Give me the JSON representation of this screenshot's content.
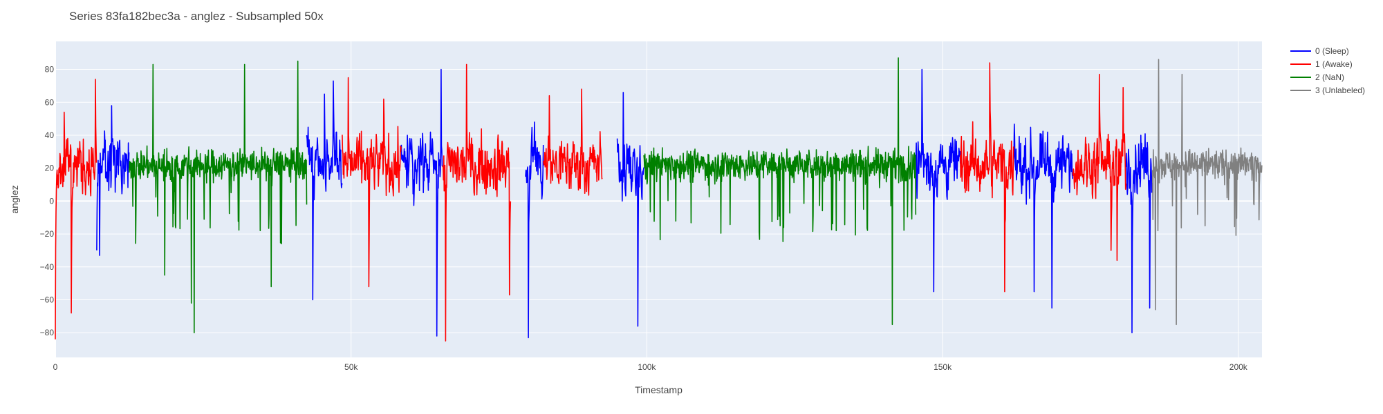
{
  "chart_data": {
    "type": "line",
    "title": "Series 83fa182bec3a - anglez - Subsampled 50x",
    "xlabel": "Timestamp",
    "ylabel": "anglez",
    "xlim": [
      0,
      204000
    ],
    "ylim": [
      -95,
      97
    ],
    "x_ticks": [
      0,
      50000,
      100000,
      150000,
      200000
    ],
    "x_tick_labels": [
      "0",
      "50k",
      "100k",
      "150k",
      "200k"
    ],
    "y_ticks": [
      -80,
      -60,
      -40,
      -20,
      0,
      20,
      40,
      60,
      80
    ],
    "y_tick_labels": [
      "−80",
      "−60",
      "−40",
      "−20",
      "0",
      "20",
      "40",
      "60",
      "80"
    ],
    "grid": true,
    "legend_position": "top-right",
    "plot_background": "#e5ecf6",
    "series": [
      {
        "name": "0 (Sleep)",
        "color": "#0000ff",
        "style": "dense",
        "ranges": [
          [
            7000,
            12500
          ],
          [
            42500,
            48500
          ],
          [
            58500,
            65500
          ],
          [
            79500,
            82500
          ],
          [
            95000,
            99500
          ],
          [
            145500,
            153000
          ],
          [
            162000,
            172000
          ],
          [
            181000,
            185500
          ]
        ],
        "keypoints": [
          [
            7000,
            -30
          ],
          [
            7500,
            -33
          ],
          [
            9500,
            58
          ],
          [
            11500,
            20
          ],
          [
            12500,
            73
          ],
          [
            42500,
            40
          ],
          [
            43500,
            -60
          ],
          [
            45500,
            65
          ],
          [
            47000,
            73
          ],
          [
            48500,
            10
          ],
          [
            59500,
            40
          ],
          [
            64500,
            -82
          ],
          [
            65200,
            80
          ],
          [
            80000,
            -83
          ],
          [
            81000,
            48
          ],
          [
            95000,
            38
          ],
          [
            96000,
            66
          ],
          [
            98500,
            -76
          ],
          [
            146500,
            80
          ],
          [
            148500,
            -55
          ],
          [
            154000,
            77
          ],
          [
            165500,
            -55
          ],
          [
            168500,
            -65
          ],
          [
            182000,
            -80
          ],
          [
            183500,
            40
          ],
          [
            185000,
            -65
          ]
        ]
      },
      {
        "name": "1 (Awake)",
        "color": "#ff0000",
        "style": "dense",
        "ranges": [
          [
            0,
            7000
          ],
          [
            48500,
            58500
          ],
          [
            65500,
            77000
          ],
          [
            82500,
            92500
          ],
          [
            153000,
            162000
          ],
          [
            172000,
            181000
          ]
        ],
        "keypoints": [
          [
            0,
            -84
          ],
          [
            500,
            8
          ],
          [
            1500,
            54
          ],
          [
            2700,
            -68
          ],
          [
            6800,
            74
          ],
          [
            49500,
            75
          ],
          [
            53000,
            -52
          ],
          [
            55500,
            62
          ],
          [
            66000,
            -85
          ],
          [
            69500,
            83
          ],
          [
            76800,
            -57
          ],
          [
            83500,
            64
          ],
          [
            89000,
            68
          ],
          [
            92500,
            -84
          ],
          [
            158000,
            84
          ],
          [
            160500,
            -55
          ],
          [
            176500,
            77
          ],
          [
            178500,
            -30
          ],
          [
            179500,
            -36
          ],
          [
            180500,
            69
          ]
        ]
      },
      {
        "name": "2 (NaN)",
        "color": "#008000",
        "style": "dense",
        "ranges": [
          [
            12500,
            42500
          ],
          [
            99500,
            145500
          ]
        ],
        "keypoints": [
          [
            16500,
            83
          ],
          [
            18500,
            -45
          ],
          [
            23000,
            -62
          ],
          [
            23500,
            -80
          ],
          [
            24000,
            16
          ],
          [
            32000,
            83
          ],
          [
            36500,
            -52
          ],
          [
            41000,
            85
          ],
          [
            103000,
            22
          ],
          [
            115000,
            15
          ],
          [
            120000,
            28
          ],
          [
            130000,
            12
          ],
          [
            141500,
            -75
          ],
          [
            142500,
            87
          ],
          [
            144000,
            20
          ]
        ]
      },
      {
        "name": "3 (Unlabeled)",
        "color": "#808080",
        "style": "dense",
        "ranges": [
          [
            185500,
            204000
          ]
        ],
        "keypoints": [
          [
            186000,
            -66
          ],
          [
            186500,
            86
          ],
          [
            189500,
            -75
          ],
          [
            190500,
            77
          ],
          [
            195000,
            32
          ],
          [
            203000,
            12
          ]
        ]
      }
    ]
  }
}
